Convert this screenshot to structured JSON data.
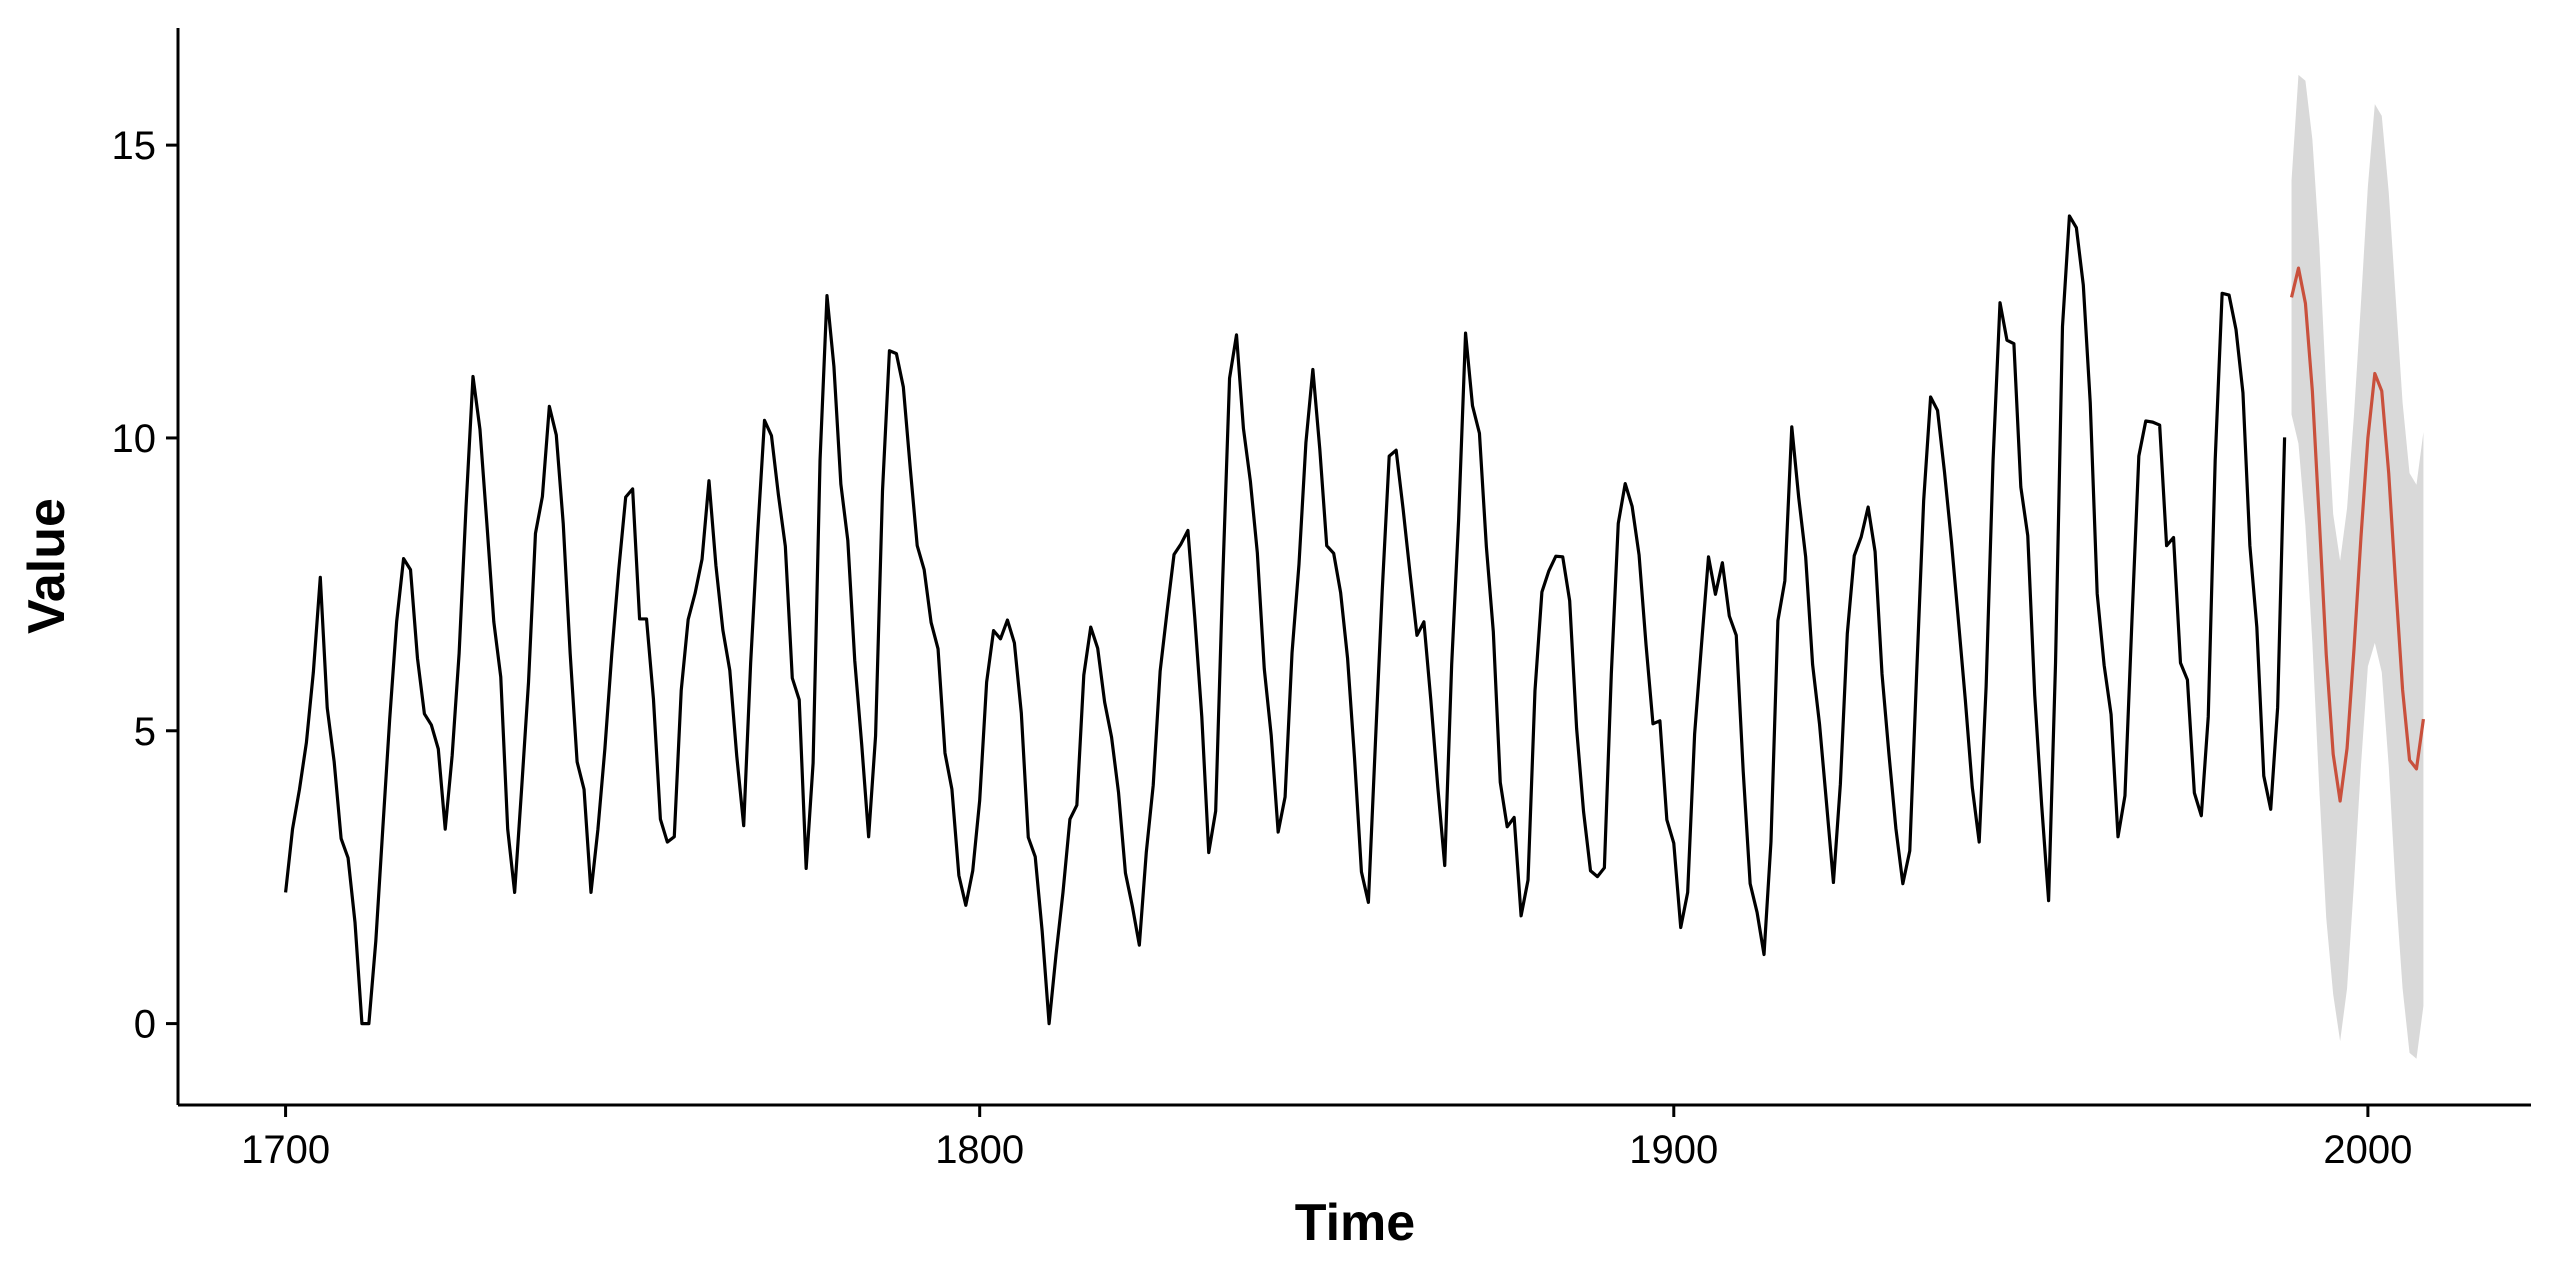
{
  "chart_data": {
    "type": "line",
    "xlabel": "Time",
    "ylabel": "Value",
    "xlim": [
      1684.5,
      2023.5
    ],
    "ylim": [
      -1.39,
      17.0
    ],
    "xticks": [
      1700,
      1800,
      1900,
      2000
    ],
    "yticks": [
      0,
      5,
      10,
      15
    ],
    "grid": false,
    "series": [
      {
        "color": "#000000",
        "x": [
          1700,
          1701,
          1702,
          1703,
          1704,
          1705,
          1706,
          1707,
          1708,
          1709,
          1710,
          1711,
          1712,
          1713,
          1714,
          1715,
          1716,
          1717,
          1718,
          1719,
          1720,
          1721,
          1722,
          1723,
          1724,
          1725,
          1726,
          1727,
          1728,
          1729,
          1730,
          1731,
          1732,
          1733,
          1734,
          1735,
          1736,
          1737,
          1738,
          1739,
          1740,
          1741,
          1742,
          1743,
          1744,
          1745,
          1746,
          1747,
          1748,
          1749,
          1750,
          1751,
          1752,
          1753,
          1754,
          1755,
          1756,
          1757,
          1758,
          1759,
          1760,
          1761,
          1762,
          1763,
          1764,
          1765,
          1766,
          1767,
          1768,
          1769,
          1770,
          1771,
          1772,
          1773,
          1774,
          1775,
          1776,
          1777,
          1778,
          1779,
          1780,
          1781,
          1782,
          1783,
          1784,
          1785,
          1786,
          1787,
          1788,
          1789,
          1790,
          1791,
          1792,
          1793,
          1794,
          1795,
          1796,
          1797,
          1798,
          1799,
          1800,
          1801,
          1802,
          1803,
          1804,
          1805,
          1806,
          1807,
          1808,
          1809,
          1810,
          1811,
          1812,
          1813,
          1814,
          1815,
          1816,
          1817,
          1818,
          1819,
          1820,
          1821,
          1822,
          1823,
          1824,
          1825,
          1826,
          1827,
          1828,
          1829,
          1830,
          1831,
          1832,
          1833,
          1834,
          1835,
          1836,
          1837,
          1838,
          1839,
          1840,
          1841,
          1842,
          1843,
          1844,
          1845,
          1846,
          1847,
          1848,
          1849,
          1850,
          1851,
          1852,
          1853,
          1854,
          1855,
          1856,
          1857,
          1858,
          1859,
          1860,
          1861,
          1862,
          1863,
          1864,
          1865,
          1866,
          1867,
          1868,
          1869,
          1870,
          1871,
          1872,
          1873,
          1874,
          1875,
          1876,
          1877,
          1878,
          1879,
          1880,
          1881,
          1882,
          1883,
          1884,
          1885,
          1886,
          1887,
          1888,
          1889,
          1890,
          1891,
          1892,
          1893,
          1894,
          1895,
          1896,
          1897,
          1898,
          1899,
          1900,
          1901,
          1902,
          1903,
          1904,
          1905,
          1906,
          1907,
          1908,
          1909,
          1910,
          1911,
          1912,
          1913,
          1914,
          1915,
          1916,
          1917,
          1918,
          1919,
          1920,
          1921,
          1922,
          1923,
          1924,
          1925,
          1926,
          1927,
          1928,
          1929,
          1930,
          1931,
          1932,
          1933,
          1934,
          1935,
          1936,
          1937,
          1938,
          1939,
          1940,
          1941,
          1942,
          1943,
          1944,
          1945,
          1946,
          1947,
          1948,
          1949,
          1950,
          1951,
          1952,
          1953,
          1954,
          1955,
          1956,
          1957,
          1958,
          1959,
          1960,
          1961,
          1962,
          1963,
          1964,
          1965,
          1966,
          1967,
          1968,
          1969,
          1970,
          1971,
          1972,
          1973,
          1974,
          1975,
          1976,
          1977,
          1978,
          1979,
          1980,
          1981,
          1982,
          1983,
          1984,
          1985,
          1986,
          1987,
          1988
        ],
        "values": [
          2.24,
          3.32,
          4,
          4.8,
          6,
          7.62,
          5.39,
          4.47,
          3.16,
          2.83,
          1.73,
          0,
          0,
          1.41,
          3.32,
          5.2,
          6.86,
          7.94,
          7.75,
          6.24,
          5.29,
          5.1,
          4.69,
          3.32,
          4.58,
          6.32,
          8.83,
          11.05,
          10.15,
          8.54,
          6.86,
          5.92,
          3.32,
          2.24,
          4,
          5.83,
          8.37,
          9,
          10.54,
          10.05,
          8.54,
          6.32,
          4.47,
          4,
          2.24,
          3.32,
          4.69,
          6.32,
          7.75,
          8.99,
          9.13,
          6.91,
          6.91,
          5.54,
          3.49,
          3.1,
          3.19,
          5.69,
          6.9,
          7.35,
          7.93,
          9.27,
          7.82,
          6.72,
          6.03,
          4.57,
          3.38,
          6.15,
          8.35,
          10.3,
          10.04,
          9.03,
          8.15,
          5.9,
          5.53,
          2.65,
          4.45,
          9.62,
          12.43,
          11.22,
          9.21,
          8.25,
          6.2,
          4.77,
          3.19,
          4.91,
          9.1,
          11.49,
          11.44,
          10.87,
          9.48,
          8.16,
          7.75,
          6.85,
          6.4,
          4.62,
          4,
          2.53,
          2.02,
          2.61,
          3.81,
          5.83,
          6.71,
          6.57,
          6.89,
          6.5,
          5.3,
          3.18,
          2.85,
          1.58,
          0,
          1.18,
          2.24,
          3.49,
          3.73,
          5.95,
          6.77,
          6.41,
          5.49,
          4.89,
          3.95,
          2.57,
          2,
          1.34,
          2.92,
          4.07,
          6.02,
          7.04,
          8.01,
          8.19,
          8.42,
          6.91,
          5.24,
          2.92,
          3.63,
          7.54,
          11.02,
          11.76,
          10.16,
          9.26,
          8.04,
          6.06,
          4.92,
          3.27,
          3.87,
          6.33,
          7.84,
          9.92,
          11.17,
          9.81,
          8.16,
          8.03,
          7.36,
          6.24,
          4.54,
          2.59,
          2.07,
          4.76,
          7.4,
          9.69,
          9.79,
          8.79,
          7.69,
          6.63,
          6.86,
          5.52,
          4.04,
          2.7,
          6.13,
          8.6,
          11.79,
          10.55,
          10.08,
          8.14,
          6.69,
          4.12,
          3.36,
          3.52,
          1.84,
          2.45,
          5.68,
          7.37,
          7.73,
          7.98,
          7.97,
          7.22,
          5.04,
          3.62,
          2.61,
          2.51,
          2.66,
          5.97,
          8.54,
          9.22,
          8.83,
          8,
          6.47,
          5.12,
          5.17,
          3.48,
          3.08,
          1.64,
          2.24,
          4.94,
          6.48,
          7.97,
          7.33,
          7.87,
          6.96,
          6.63,
          4.31,
          2.39,
          1.9,
          1.18,
          3.1,
          6.88,
          7.56,
          10.19,
          8.98,
          7.97,
          6.13,
          5.11,
          3.77,
          2.41,
          4.09,
          6.66,
          7.99,
          8.31,
          8.82,
          8.06,
          5.97,
          4.6,
          3.33,
          2.39,
          2.95,
          6.01,
          8.93,
          10.7,
          10.47,
          9.42,
          8.23,
          6.89,
          5.53,
          4.04,
          3.1,
          5.76,
          9.62,
          12.31,
          11.67,
          11.61,
          9.16,
          8.33,
          5.61,
          3.73,
          2.1,
          6.16,
          11.9,
          13.79,
          13.59,
          12.61,
          10.6,
          7.34,
          6.12,
          5.28,
          3.19,
          3.89,
          6.86,
          9.69,
          10.29,
          10.27,
          10.22,
          8.16,
          8.3,
          6.16,
          5.87,
          3.94,
          3.55,
          5.24,
          9.62,
          12.47,
          12.44,
          11.85,
          10.77,
          8.16,
          6.77,
          4.23,
          3.66,
          5.4,
          10.01
        ]
      },
      {
        "color": "#c9503c",
        "band_color": "#d9d9d9",
        "x": [
          1989,
          1990,
          1991,
          1992,
          1993,
          1994,
          1995,
          1996,
          1997,
          1998,
          1999,
          2000,
          2001,
          2002,
          2003,
          2004,
          2005,
          2006,
          2007,
          2008
        ],
        "values": [
          12.4,
          12.9,
          12.3,
          10.8,
          8.6,
          6.3,
          4.6,
          3.8,
          4.7,
          6.4,
          8.3,
          10.0,
          11.1,
          10.8,
          9.4,
          7.5,
          5.7,
          4.5,
          4.35,
          5.2
        ],
        "lower": [
          10.4,
          9.9,
          8.5,
          6.5,
          4.0,
          1.8,
          0.5,
          -0.3,
          0.6,
          2.4,
          4.4,
          6.1,
          6.5,
          6.0,
          4.4,
          2.3,
          0.6,
          -0.5,
          -0.6,
          0.3
        ],
        "upper": [
          14.4,
          16.2,
          16.1,
          15.1,
          13.3,
          10.8,
          8.7,
          7.9,
          8.8,
          10.4,
          12.3,
          14.3,
          15.7,
          15.5,
          14.2,
          12.4,
          10.6,
          9.4,
          9.2,
          10.1
        ]
      }
    ]
  }
}
